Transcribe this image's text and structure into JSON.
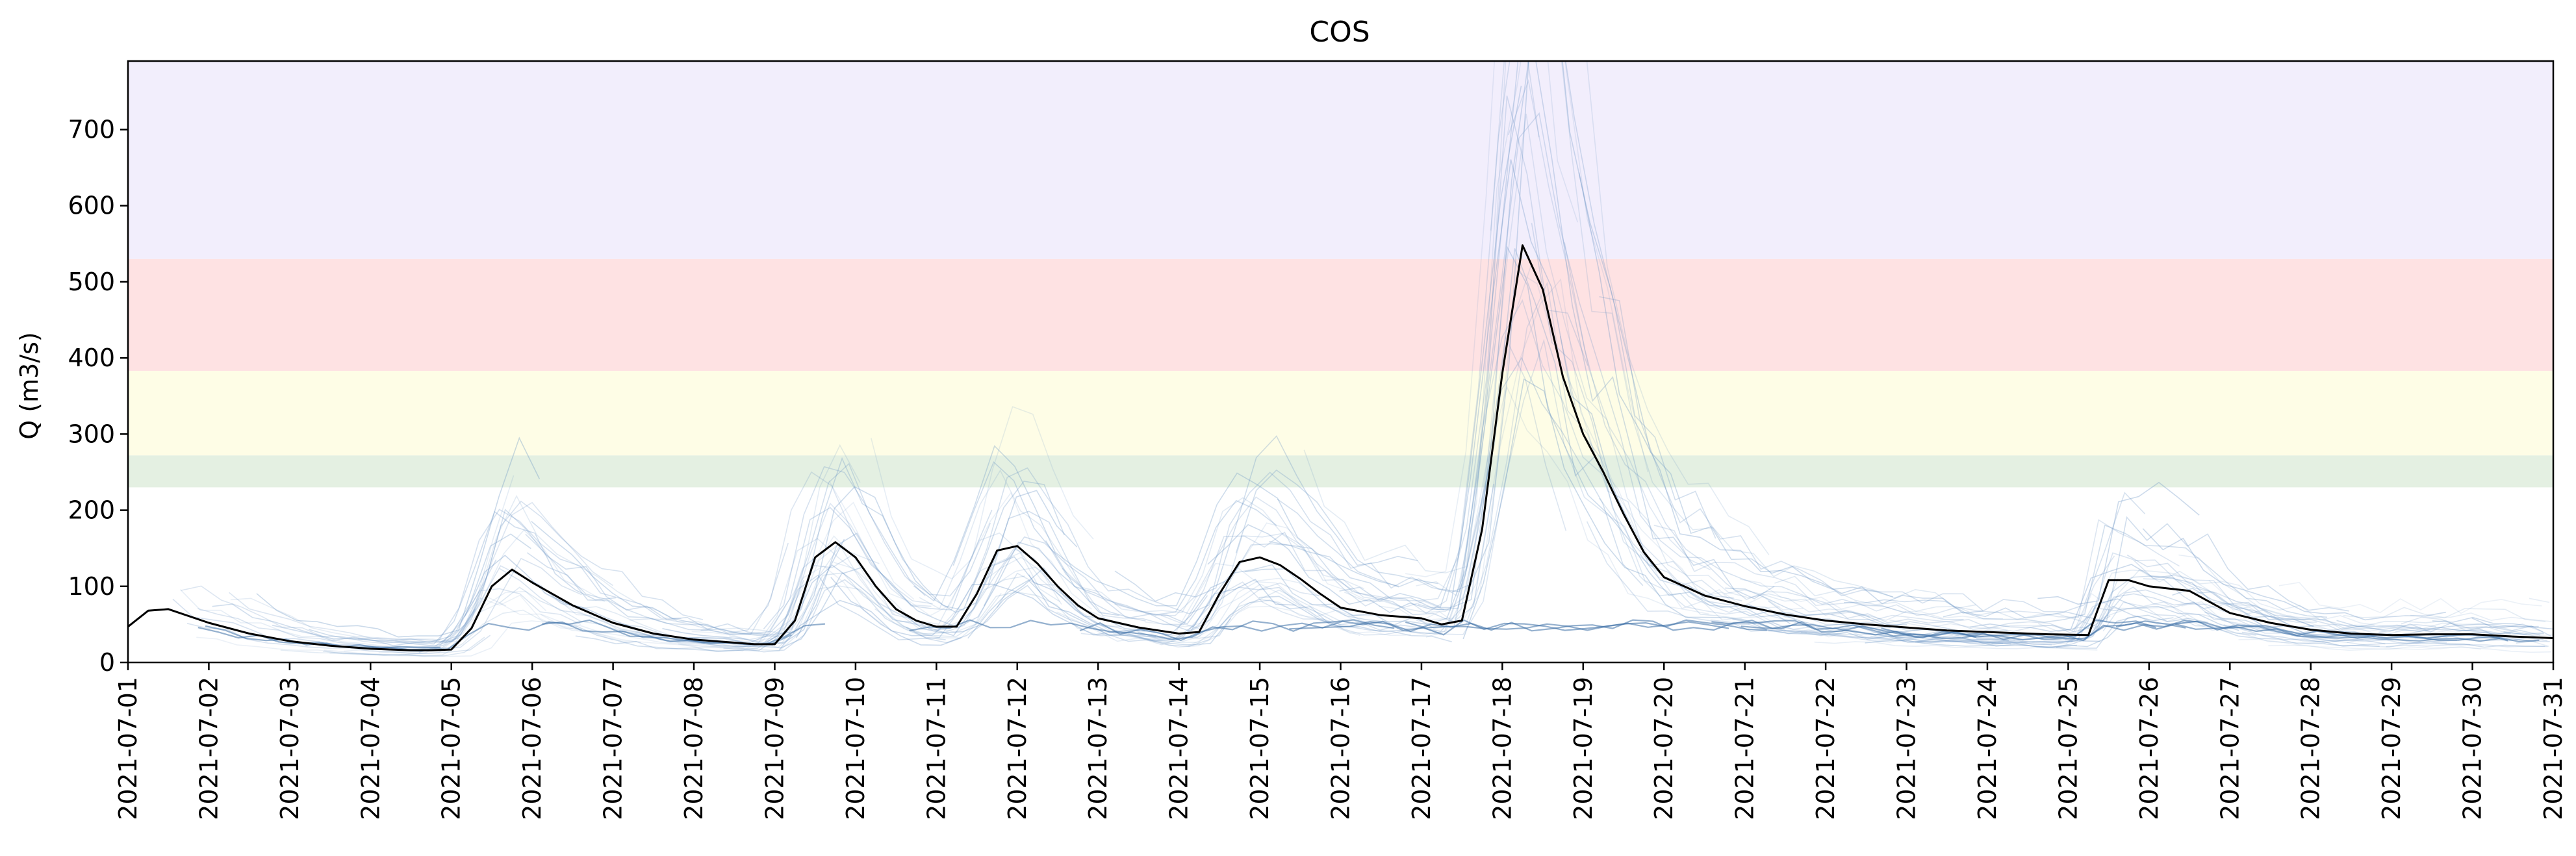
{
  "chart_data": {
    "type": "line",
    "title": "COS",
    "xlabel": "",
    "ylabel": "Q (m3/s)",
    "xlim": [
      "2021-07-01",
      "2021-07-31"
    ],
    "ylim": [
      0,
      790
    ],
    "yticks": [
      0,
      100,
      200,
      300,
      400,
      500,
      600,
      700
    ],
    "xticks": [
      "2021-07-01",
      "2021-07-02",
      "2021-07-03",
      "2021-07-04",
      "2021-07-05",
      "2021-07-06",
      "2021-07-07",
      "2021-07-08",
      "2021-07-09",
      "2021-07-10",
      "2021-07-11",
      "2021-07-12",
      "2021-07-13",
      "2021-07-14",
      "2021-07-15",
      "2021-07-16",
      "2021-07-17",
      "2021-07-18",
      "2021-07-19",
      "2021-07-20",
      "2021-07-21",
      "2021-07-22",
      "2021-07-23",
      "2021-07-24",
      "2021-07-25",
      "2021-07-26",
      "2021-07-27",
      "2021-07-28",
      "2021-07-29",
      "2021-07-30",
      "2021-07-31"
    ],
    "grid": false,
    "threshold_bands": [
      {
        "y0": 230,
        "y1": 272,
        "color": "#e4f0e2"
      },
      {
        "y0": 272,
        "y1": 383,
        "color": "#fefde6"
      },
      {
        "y0": 383,
        "y1": 530,
        "color": "#fee2e3"
      },
      {
        "y0": 530,
        "y1": 790,
        "color": "#f2eefc"
      }
    ],
    "ensemble_color": "#6a94c4",
    "observed_color": "#000000",
    "observed_series": {
      "x": [
        "2021-07-01T00:00",
        "2021-07-01T06:00",
        "2021-07-01T12:00",
        "2021-07-02T00:00",
        "2021-07-02T12:00",
        "2021-07-03T00:00",
        "2021-07-03T12:00",
        "2021-07-04T00:00",
        "2021-07-04T12:00",
        "2021-07-04T18:00",
        "2021-07-05T00:00",
        "2021-07-05T06:00",
        "2021-07-05T12:00",
        "2021-07-05T18:00",
        "2021-07-06T00:00",
        "2021-07-06T12:00",
        "2021-07-07T00:00",
        "2021-07-07T12:00",
        "2021-07-08T00:00",
        "2021-07-08T12:00",
        "2021-07-08T18:00",
        "2021-07-09T00:00",
        "2021-07-09T06:00",
        "2021-07-09T12:00",
        "2021-07-09T18:00",
        "2021-07-10T00:00",
        "2021-07-10T06:00",
        "2021-07-10T12:00",
        "2021-07-10T18:00",
        "2021-07-11T00:00",
        "2021-07-11T06:00",
        "2021-07-11T12:00",
        "2021-07-11T18:00",
        "2021-07-12T00:00",
        "2021-07-12T06:00",
        "2021-07-12T12:00",
        "2021-07-12T18:00",
        "2021-07-13T00:00",
        "2021-07-13T12:00",
        "2021-07-14T00:00",
        "2021-07-14T06:00",
        "2021-07-14T12:00",
        "2021-07-14T18:00",
        "2021-07-15T00:00",
        "2021-07-15T06:00",
        "2021-07-15T12:00",
        "2021-07-15T18:00",
        "2021-07-16T00:00",
        "2021-07-16T12:00",
        "2021-07-17T00:00",
        "2021-07-17T06:00",
        "2021-07-17T12:00",
        "2021-07-17T18:00",
        "2021-07-18T00:00",
        "2021-07-18T06:00",
        "2021-07-18T12:00",
        "2021-07-18T18:00",
        "2021-07-19T00:00",
        "2021-07-19T06:00",
        "2021-07-19T12:00",
        "2021-07-19T18:00",
        "2021-07-20T00:00",
        "2021-07-20T12:00",
        "2021-07-21T00:00",
        "2021-07-21T12:00",
        "2021-07-22T00:00",
        "2021-07-22T12:00",
        "2021-07-23T00:00",
        "2021-07-23T12:00",
        "2021-07-24T00:00",
        "2021-07-24T12:00",
        "2021-07-24T18:00",
        "2021-07-25T06:00",
        "2021-07-25T12:00",
        "2021-07-25T18:00",
        "2021-07-26T00:00",
        "2021-07-26T12:00",
        "2021-07-27T00:00",
        "2021-07-27T12:00",
        "2021-07-28T00:00",
        "2021-07-28T12:00",
        "2021-07-29T00:00",
        "2021-07-29T12:00",
        "2021-07-30T00:00",
        "2021-07-30T12:00",
        "2021-07-31T00:00"
      ],
      "values": [
        47,
        68,
        70,
        52,
        38,
        28,
        22,
        18,
        16,
        16,
        17,
        45,
        100,
        122,
        105,
        75,
        52,
        38,
        30,
        26,
        24,
        24,
        55,
        138,
        158,
        138,
        100,
        70,
        55,
        47,
        47,
        90,
        147,
        153,
        130,
        100,
        75,
        58,
        46,
        38,
        40,
        90,
        132,
        138,
        128,
        110,
        90,
        72,
        62,
        58,
        50,
        55,
        175,
        380,
        548,
        490,
        375,
        300,
        250,
        195,
        145,
        112,
        88,
        74,
        63,
        55,
        50,
        46,
        42,
        40,
        38,
        37,
        36,
        108,
        108,
        100,
        94,
        65,
        52,
        43,
        38,
        36,
        37,
        37,
        34,
        32
      ],
      "name": ""
    }
  }
}
